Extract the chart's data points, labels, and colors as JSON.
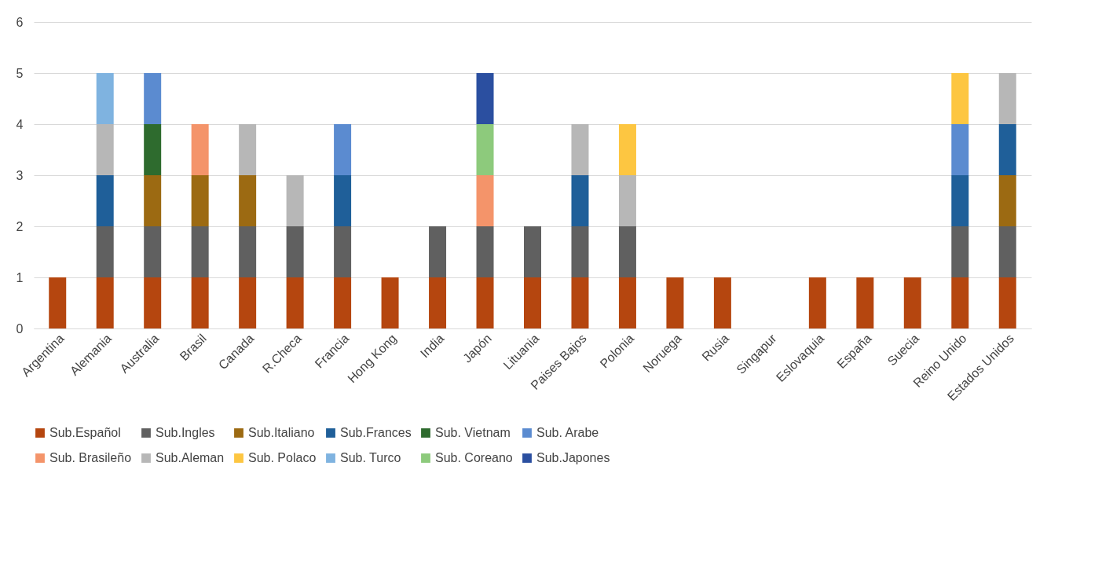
{
  "chart_data": {
    "type": "bar",
    "stacked": true,
    "categories": [
      "Argentina",
      "Alemania",
      "Australia",
      "Brasil",
      "Canada",
      "R.Checa",
      "Francia",
      "Hong Kong",
      "India",
      "Japón",
      "Lituania",
      "Paises Bajos",
      "Polonia",
      "Noruega",
      "Rusia",
      "Singapur",
      "Eslovaquia",
      "España",
      "Suecia",
      "Reino Unido",
      "Estados Unidos"
    ],
    "ylim": [
      0,
      6
    ],
    "yticks": [
      0,
      1,
      2,
      3,
      4,
      5,
      6
    ],
    "grid": "y",
    "legend": "bottom",
    "series": [
      {
        "name": "Sub.Español",
        "color": "#b5460f",
        "values": [
          1,
          1,
          1,
          1,
          1,
          1,
          1,
          1,
          1,
          1,
          1,
          1,
          1,
          1,
          1,
          null,
          1,
          1,
          1,
          1,
          1
        ]
      },
      {
        "name": "Sub.Ingles",
        "color": "#606060",
        "values": [
          null,
          1,
          1,
          1,
          1,
          1,
          1,
          null,
          1,
          1,
          1,
          1,
          1,
          null,
          null,
          null,
          null,
          null,
          null,
          1,
          1
        ]
      },
      {
        "name": "Sub.Italiano",
        "color": "#9c6a12",
        "values": [
          null,
          null,
          1,
          1,
          1,
          null,
          null,
          null,
          null,
          null,
          null,
          null,
          null,
          null,
          null,
          null,
          null,
          null,
          null,
          null,
          1
        ]
      },
      {
        "name": "Sub.Frances",
        "color": "#1f5f99",
        "values": [
          null,
          1,
          null,
          null,
          null,
          null,
          1,
          null,
          null,
          null,
          null,
          1,
          null,
          null,
          null,
          null,
          null,
          null,
          null,
          1,
          1
        ]
      },
      {
        "name": "Sub. Vietnam",
        "color": "#2e6b2e",
        "values": [
          null,
          null,
          1,
          null,
          null,
          null,
          null,
          null,
          null,
          null,
          null,
          null,
          null,
          null,
          null,
          null,
          null,
          null,
          null,
          null,
          null
        ]
      },
      {
        "name": "Sub. Arabe",
        "color": "#5b8bd0",
        "values": [
          null,
          null,
          1,
          null,
          null,
          null,
          1,
          null,
          null,
          null,
          null,
          null,
          null,
          null,
          null,
          null,
          null,
          null,
          null,
          1,
          null
        ]
      },
      {
        "name": "Sub. Brasileño",
        "color": "#f4946a",
        "values": [
          null,
          null,
          null,
          1,
          null,
          null,
          null,
          null,
          null,
          1,
          null,
          null,
          null,
          null,
          null,
          null,
          null,
          null,
          null,
          null,
          null
        ]
      },
      {
        "name": "Sub.Aleman",
        "color": "#b7b7b7",
        "values": [
          null,
          1,
          null,
          null,
          1,
          1,
          null,
          null,
          null,
          null,
          null,
          1,
          1,
          null,
          null,
          null,
          null,
          null,
          null,
          null,
          1
        ]
      },
      {
        "name": "Sub. Polaco",
        "color": "#fdc641",
        "values": [
          null,
          null,
          null,
          null,
          null,
          null,
          null,
          null,
          null,
          null,
          null,
          null,
          1,
          null,
          null,
          null,
          null,
          null,
          null,
          1,
          null
        ]
      },
      {
        "name": "Sub. Turco",
        "color": "#7fb3e0",
        "values": [
          null,
          1,
          null,
          null,
          null,
          null,
          null,
          null,
          null,
          null,
          null,
          null,
          null,
          null,
          null,
          null,
          null,
          null,
          null,
          null,
          null
        ]
      },
      {
        "name": "Sub. Coreano",
        "color": "#8dca7c",
        "values": [
          null,
          null,
          null,
          null,
          null,
          null,
          null,
          null,
          null,
          1,
          null,
          null,
          null,
          null,
          null,
          null,
          null,
          null,
          null,
          null,
          null
        ]
      },
      {
        "name": "Sub.Japones",
        "color": "#2b4fa0",
        "values": [
          null,
          null,
          null,
          null,
          null,
          null,
          null,
          null,
          null,
          1,
          null,
          null,
          null,
          null,
          null,
          null,
          null,
          null,
          null,
          null,
          null
        ]
      }
    ]
  }
}
